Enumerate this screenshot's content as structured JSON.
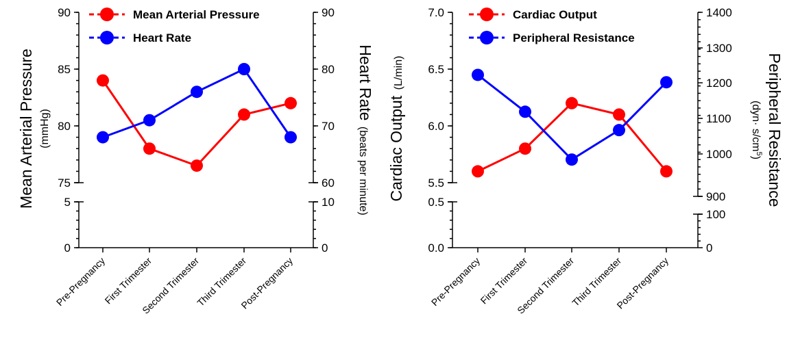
{
  "chart_data": [
    {
      "type": "line",
      "categories": [
        "Pre-Pregnancy",
        "First Trimester",
        "Second Trimester",
        "Third Trimester",
        "Post-Pregnancy"
      ],
      "series": [
        {
          "name": "Mean Arterial Pressure",
          "axis": "left",
          "color": "#ff0000",
          "values": [
            84,
            78,
            76.5,
            81,
            82
          ]
        },
        {
          "name": "Heart Rate",
          "axis": "right",
          "color": "#0000ff",
          "values": [
            68,
            71,
            76,
            80,
            68
          ]
        }
      ],
      "left_axis": {
        "title": "Mean Arterial Pressure",
        "unit": "(mmHg)",
        "broken": true,
        "upper_range": [
          75,
          90
        ],
        "lower_range": [
          0,
          5
        ],
        "upper_ticks": [
          "75",
          "80",
          "85",
          "90"
        ],
        "lower_ticks": [
          "0",
          "5"
        ]
      },
      "right_axis": {
        "title": "Heart Rate",
        "unit": "(beats per minute)",
        "broken": true,
        "upper_range": [
          60,
          90
        ],
        "lower_range": [
          0,
          10
        ],
        "upper_ticks": [
          "60",
          "70",
          "80",
          "90"
        ],
        "lower_ticks": [
          "0",
          "10"
        ]
      },
      "legend_position": "top-left",
      "grid": false
    },
    {
      "type": "line",
      "categories": [
        "Pre-Pregnancy",
        "First Trimester",
        "Second Trimester",
        "Third Trimester",
        "Post-Pregnancy"
      ],
      "series": [
        {
          "name": "Cardiac Output",
          "axis": "left",
          "color": "#ff0000",
          "values": [
            5.6,
            5.8,
            6.2,
            6.1,
            5.6
          ]
        },
        {
          "name": "Peripheral Resistance",
          "axis": "right",
          "color": "#0000ff",
          "values": [
            1230,
            1130,
            1000,
            1080,
            1210
          ]
        }
      ],
      "left_axis": {
        "title": "Cardiac Output",
        "unit": "(L/min)",
        "broken": true,
        "upper_range": [
          5.5,
          7.0
        ],
        "lower_range": [
          0,
          0.5
        ],
        "upper_ticks": [
          "5.5",
          "6.0",
          "6.5",
          "7.0"
        ],
        "lower_ticks": [
          "0.0",
          "0.5"
        ]
      },
      "right_axis": {
        "title": "Peripheral Resistance",
        "unit_prefix": "(dyn· s/cm",
        "unit_sup": "5",
        "unit_suffix": ")",
        "broken": true,
        "upper_range": [
          900,
          1400
        ],
        "lower_range": [
          0,
          100
        ],
        "upper_ticks": [
          "900",
          "1000",
          "1100",
          "1200",
          "1300",
          "1400"
        ],
        "lower_ticks": [
          "0",
          "100"
        ]
      },
      "legend_position": "top-left",
      "grid": false
    }
  ]
}
